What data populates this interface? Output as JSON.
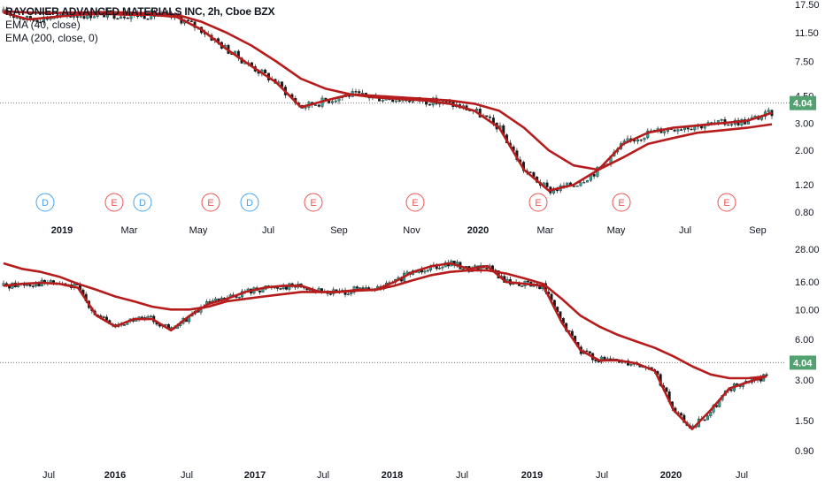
{
  "legend": {
    "title": "RAYONIER ADVANCED MATERIALS INC, 2h, Cboe BZX",
    "ema_fast": "EMA (40, close)",
    "ema_slow": "EMA (200, close, 0)"
  },
  "colors": {
    "ema": "#b71c1c",
    "candle_up": "#26a69a",
    "candle_down": "#1b1b1b",
    "last_price_bg": "#53a170",
    "event_d": "#42a5f5",
    "event_e": "#ef5350",
    "grid_dotted": "#787b86"
  },
  "chart_data": [
    {
      "type": "line",
      "title": "RAYONIER ADVANCED MATERIALS INC, 2h, Cboe BZX",
      "scale": "log",
      "last_price": "4.04",
      "y_ticks": [
        "17.50",
        "11.50",
        "7.50",
        "4.50",
        "3.00",
        "2.00",
        "1.20",
        "0.80"
      ],
      "x_ticks": [
        "2019",
        "Mar",
        "May",
        "Jul",
        "Sep",
        "Nov",
        "2020",
        "Mar",
        "May",
        "Jul",
        "Sep"
      ],
      "series": [
        {
          "name": "EMA (40, close)",
          "values": [
            15.5,
            14.0,
            14.5,
            15.0,
            15.2,
            15.0,
            15.0,
            14.5,
            12.0,
            9.0,
            7.0,
            5.5,
            3.8,
            4.2,
            4.6,
            4.4,
            4.3,
            4.2,
            4.0,
            3.6,
            2.8,
            1.5,
            1.1,
            1.2,
            1.5,
            2.2,
            2.6,
            2.8,
            2.9,
            3.0,
            3.1,
            3.5
          ]
        },
        {
          "name": "EMA (200, close, 0)",
          "values": [
            15.8,
            15.5,
            15.4,
            15.5,
            15.6,
            15.5,
            15.3,
            15.0,
            13.5,
            11.5,
            9.5,
            7.5,
            5.8,
            5.0,
            4.6,
            4.5,
            4.4,
            4.3,
            4.2,
            4.0,
            3.6,
            2.8,
            2.0,
            1.6,
            1.5,
            1.8,
            2.2,
            2.4,
            2.6,
            2.7,
            2.8,
            2.95
          ]
        }
      ],
      "events": [
        {
          "label": "D"
        },
        {
          "label": "E"
        },
        {
          "label": "D"
        },
        {
          "label": "E"
        },
        {
          "label": "D"
        },
        {
          "label": "E"
        },
        {
          "label": "E"
        },
        {
          "label": "E"
        },
        {
          "label": "E"
        },
        {
          "label": "E"
        }
      ]
    },
    {
      "type": "line",
      "scale": "log",
      "last_price": "4.04",
      "y_ticks": [
        "28.00",
        "16.00",
        "10.00",
        "6.00",
        "3.00",
        "1.50",
        "0.90"
      ],
      "x_ticks": [
        "Jul",
        "2016",
        "Jul",
        "2017",
        "Jul",
        "2018",
        "Jul",
        "2019",
        "Jul",
        "2020",
        "Jul"
      ],
      "series": [
        {
          "name": "EMA (40, close)",
          "values": [
            15.0,
            15.5,
            15.8,
            15.5,
            14.5,
            9.0,
            7.5,
            8.5,
            8.5,
            7.0,
            9.0,
            11.0,
            12.0,
            13.5,
            14.5,
            15.0,
            15.0,
            13.5,
            13.5,
            14.0,
            14.0,
            16.0,
            19.0,
            21.0,
            22.0,
            20.0,
            21.0,
            16.0,
            15.5,
            15.0,
            8.0,
            5.0,
            4.2,
            4.2,
            4.0,
            3.5,
            1.8,
            1.3,
            1.8,
            2.6,
            2.9,
            3.2
          ]
        },
        {
          "name": "EMA (200, close, 0)",
          "values": [
            22.0,
            20.0,
            19.0,
            17.5,
            15.5,
            14.0,
            12.5,
            11.5,
            10.5,
            10.0,
            10.0,
            10.5,
            11.5,
            12.0,
            12.5,
            13.0,
            13.5,
            13.5,
            13.5,
            13.8,
            14.0,
            15.0,
            16.5,
            18.0,
            19.0,
            19.5,
            19.5,
            18.5,
            17.0,
            15.5,
            12.0,
            9.0,
            7.5,
            6.5,
            5.8,
            5.2,
            4.5,
            3.8,
            3.3,
            3.1,
            3.1,
            3.2
          ]
        }
      ]
    }
  ]
}
